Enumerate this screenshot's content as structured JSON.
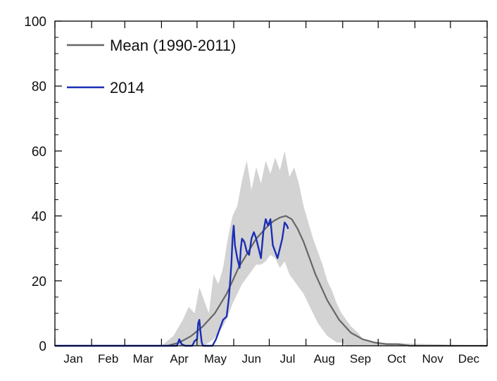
{
  "chart_data": {
    "type": "line",
    "title": "",
    "xlabel": "",
    "ylabel": "",
    "ylim": [
      0,
      100
    ],
    "xlim": [
      0,
      365
    ],
    "yticks": [
      0,
      20,
      40,
      60,
      80,
      100
    ],
    "months": [
      "Jan",
      "Feb",
      "Mar",
      "Apr",
      "May",
      "Jun",
      "Jul",
      "Aug",
      "Sep",
      "Oct",
      "Nov",
      "Dec"
    ],
    "month_starts": [
      0,
      31,
      59,
      90,
      120,
      151,
      181,
      212,
      243,
      273,
      304,
      334
    ],
    "grid": false,
    "legend": "top-left",
    "band": {
      "color": "#d3d3d3",
      "x": [
        0,
        90,
        100,
        108,
        113,
        118,
        122,
        126,
        130,
        134,
        138,
        142,
        146,
        150,
        154,
        158,
        162,
        166,
        170,
        174,
        178,
        182,
        186,
        190,
        194,
        198,
        202,
        206,
        210,
        214,
        218,
        222,
        226,
        230,
        234,
        238,
        242,
        246,
        250,
        256,
        260,
        270,
        365
      ],
      "lower": [
        0,
        0,
        0,
        0,
        0,
        0,
        0,
        0,
        1,
        2,
        4,
        6,
        9,
        13,
        16,
        19,
        21,
        23,
        25,
        25,
        26,
        28,
        27,
        24,
        26,
        22,
        20,
        18,
        16,
        13,
        10,
        7,
        5,
        3,
        2,
        1,
        1,
        0,
        0,
        0,
        0,
        0,
        0
      ],
      "upper": [
        0,
        0,
        3,
        8,
        12,
        10,
        18,
        14,
        10,
        22,
        19,
        24,
        33,
        40,
        43,
        51,
        57,
        48,
        55,
        50,
        57,
        53,
        58,
        54,
        60,
        52,
        55,
        50,
        43,
        38,
        33,
        29,
        25,
        20,
        17,
        13,
        10,
        8,
        6,
        4,
        2,
        1,
        0
      ]
    },
    "series": [
      {
        "name": "Mean (1990-2011)",
        "color": "#666666",
        "x": [
          0,
          95,
          100,
          105,
          110,
          115,
          120,
          125,
          130,
          135,
          140,
          145,
          150,
          155,
          160,
          165,
          170,
          175,
          180,
          185,
          190,
          195,
          200,
          205,
          210,
          215,
          220,
          225,
          230,
          235,
          240,
          245,
          250,
          255,
          260,
          265,
          270,
          280,
          290,
          300,
          365
        ],
        "y": [
          0,
          0,
          0.5,
          1,
          2,
          3,
          4.5,
          6,
          8,
          10,
          13,
          16,
          20,
          24,
          27,
          30,
          33,
          35,
          37,
          38.5,
          39.5,
          40,
          39,
          36,
          32,
          27,
          22,
          18,
          14,
          11,
          8,
          6,
          4,
          3,
          2,
          1.5,
          1,
          0.5,
          0.5,
          0,
          0
        ]
      },
      {
        "name": "2014",
        "color": "#1a2fb5",
        "x": [
          0,
          100,
          103,
          105,
          107,
          110,
          113,
          116,
          118,
          120,
          121,
          122,
          123,
          124,
          125,
          127,
          130,
          133,
          136,
          139,
          142,
          145,
          147,
          149,
          150,
          151,
          152,
          154,
          156,
          157,
          158,
          160,
          162,
          164,
          166,
          168,
          170,
          172,
          174,
          176,
          178,
          180,
          182,
          184,
          186,
          188,
          190,
          192,
          194,
          196,
          197
        ],
        "y": [
          0,
          0,
          0,
          2,
          0.5,
          0,
          0,
          0,
          1.5,
          2,
          7,
          8,
          4,
          1,
          0,
          0,
          0,
          0,
          2,
          5,
          8,
          9,
          15,
          25,
          33,
          37,
          31,
          27,
          24,
          30,
          33,
          32,
          29,
          28,
          33,
          35,
          33,
          30,
          27,
          35,
          39,
          37,
          39,
          31,
          29,
          27,
          30,
          33,
          38,
          37,
          36
        ]
      }
    ]
  }
}
